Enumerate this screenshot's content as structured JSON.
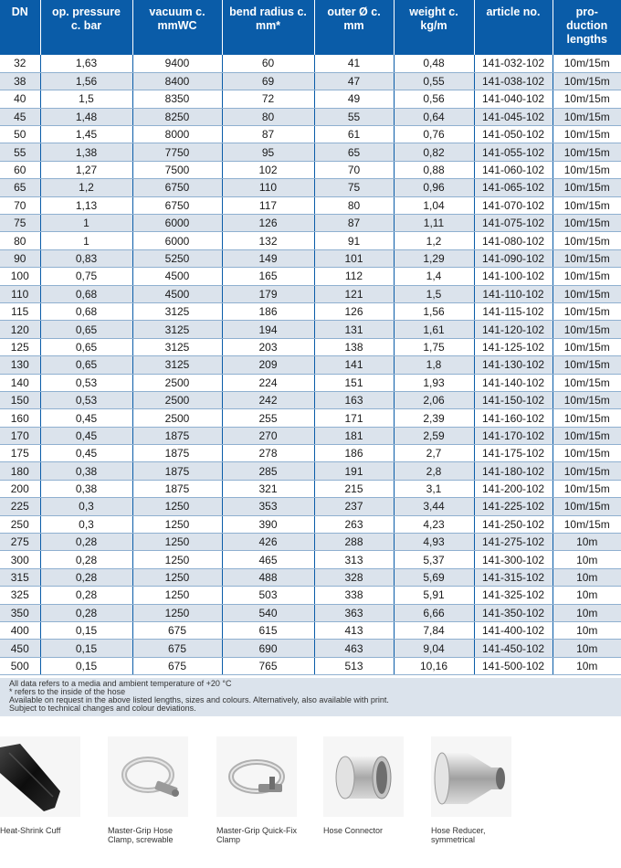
{
  "table": {
    "headers": [
      [
        "DN"
      ],
      [
        "op. pressure",
        "c. bar"
      ],
      [
        "vacuum c.",
        "mmWC"
      ],
      [
        "bend radius c.",
        "mm*"
      ],
      [
        "outer Ø c.",
        "mm"
      ],
      [
        "weight c.",
        "kg/m"
      ],
      [
        "article no."
      ],
      [
        "pro-",
        "duction",
        "lengths"
      ]
    ],
    "rows": [
      [
        "32",
        "1,63",
        "9400",
        "60",
        "41",
        "0,48",
        "141-032-102",
        "10m/15m"
      ],
      [
        "38",
        "1,56",
        "8400",
        "69",
        "47",
        "0,55",
        "141-038-102",
        "10m/15m"
      ],
      [
        "40",
        "1,5",
        "8350",
        "72",
        "49",
        "0,56",
        "141-040-102",
        "10m/15m"
      ],
      [
        "45",
        "1,48",
        "8250",
        "80",
        "55",
        "0,64",
        "141-045-102",
        "10m/15m"
      ],
      [
        "50",
        "1,45",
        "8000",
        "87",
        "61",
        "0,76",
        "141-050-102",
        "10m/15m"
      ],
      [
        "55",
        "1,38",
        "7750",
        "95",
        "65",
        "0,82",
        "141-055-102",
        "10m/15m"
      ],
      [
        "60",
        "1,27",
        "7500",
        "102",
        "70",
        "0,88",
        "141-060-102",
        "10m/15m"
      ],
      [
        "65",
        "1,2",
        "6750",
        "110",
        "75",
        "0,96",
        "141-065-102",
        "10m/15m"
      ],
      [
        "70",
        "1,13",
        "6750",
        "117",
        "80",
        "1,04",
        "141-070-102",
        "10m/15m"
      ],
      [
        "75",
        "1",
        "6000",
        "126",
        "87",
        "1,11",
        "141-075-102",
        "10m/15m"
      ],
      [
        "80",
        "1",
        "6000",
        "132",
        "91",
        "1,2",
        "141-080-102",
        "10m/15m"
      ],
      [
        "90",
        "0,83",
        "5250",
        "149",
        "101",
        "1,29",
        "141-090-102",
        "10m/15m"
      ],
      [
        "100",
        "0,75",
        "4500",
        "165",
        "112",
        "1,4",
        "141-100-102",
        "10m/15m"
      ],
      [
        "110",
        "0,68",
        "4500",
        "179",
        "121",
        "1,5",
        "141-110-102",
        "10m/15m"
      ],
      [
        "115",
        "0,68",
        "3125",
        "186",
        "126",
        "1,56",
        "141-115-102",
        "10m/15m"
      ],
      [
        "120",
        "0,65",
        "3125",
        "194",
        "131",
        "1,61",
        "141-120-102",
        "10m/15m"
      ],
      [
        "125",
        "0,65",
        "3125",
        "203",
        "138",
        "1,75",
        "141-125-102",
        "10m/15m"
      ],
      [
        "130",
        "0,65",
        "3125",
        "209",
        "141",
        "1,8",
        "141-130-102",
        "10m/15m"
      ],
      [
        "140",
        "0,53",
        "2500",
        "224",
        "151",
        "1,93",
        "141-140-102",
        "10m/15m"
      ],
      [
        "150",
        "0,53",
        "2500",
        "242",
        "163",
        "2,06",
        "141-150-102",
        "10m/15m"
      ],
      [
        "160",
        "0,45",
        "2500",
        "255",
        "171",
        "2,39",
        "141-160-102",
        "10m/15m"
      ],
      [
        "170",
        "0,45",
        "1875",
        "270",
        "181",
        "2,59",
        "141-170-102",
        "10m/15m"
      ],
      [
        "175",
        "0,45",
        "1875",
        "278",
        "186",
        "2,7",
        "141-175-102",
        "10m/15m"
      ],
      [
        "180",
        "0,38",
        "1875",
        "285",
        "191",
        "2,8",
        "141-180-102",
        "10m/15m"
      ],
      [
        "200",
        "0,38",
        "1875",
        "321",
        "215",
        "3,1",
        "141-200-102",
        "10m/15m"
      ],
      [
        "225",
        "0,3",
        "1250",
        "353",
        "237",
        "3,44",
        "141-225-102",
        "10m/15m"
      ],
      [
        "250",
        "0,3",
        "1250",
        "390",
        "263",
        "4,23",
        "141-250-102",
        "10m/15m"
      ],
      [
        "275",
        "0,28",
        "1250",
        "426",
        "288",
        "4,93",
        "141-275-102",
        "10m"
      ],
      [
        "300",
        "0,28",
        "1250",
        "465",
        "313",
        "5,37",
        "141-300-102",
        "10m"
      ],
      [
        "315",
        "0,28",
        "1250",
        "488",
        "328",
        "5,69",
        "141-315-102",
        "10m"
      ],
      [
        "325",
        "0,28",
        "1250",
        "503",
        "338",
        "5,91",
        "141-325-102",
        "10m"
      ],
      [
        "350",
        "0,28",
        "1250",
        "540",
        "363",
        "6,66",
        "141-350-102",
        "10m"
      ],
      [
        "400",
        "0,15",
        "675",
        "615",
        "413",
        "7,84",
        "141-400-102",
        "10m"
      ],
      [
        "450",
        "0,15",
        "675",
        "690",
        "463",
        "9,04",
        "141-450-102",
        "10m"
      ],
      [
        "500",
        "0,15",
        "675",
        "765",
        "513",
        "10,16",
        "141-500-102",
        "10m"
      ]
    ]
  },
  "notes": [
    "All data refers to a media and ambient temperature of +20 °C",
    "* refers to the inside of the hose",
    "Available on request in the above listed lengths, sizes and colours. Alternatively, also available with print.",
    "Subject to technical changes and colour deviations."
  ],
  "products": [
    {
      "icon": "heat-shrink-cuff-image",
      "caption": [
        "Heat-Shrink Cuff"
      ]
    },
    {
      "icon": "hose-clamp-image",
      "caption": [
        "Master-Grip Hose",
        "Clamp, screwable"
      ]
    },
    {
      "icon": "quick-fix-clamp-image",
      "caption": [
        "Master-Grip Quick-Fix",
        "Clamp"
      ]
    },
    {
      "icon": "hose-connector-image",
      "caption": [
        "Hose Connector"
      ]
    },
    {
      "icon": "hose-reducer-image",
      "caption": [
        "Hose Reducer,",
        "symmetrical"
      ]
    }
  ],
  "colors": {
    "header_bg": "#0a5ca8",
    "stripe": "#dbe3ec",
    "header_text": "#ffffff"
  }
}
